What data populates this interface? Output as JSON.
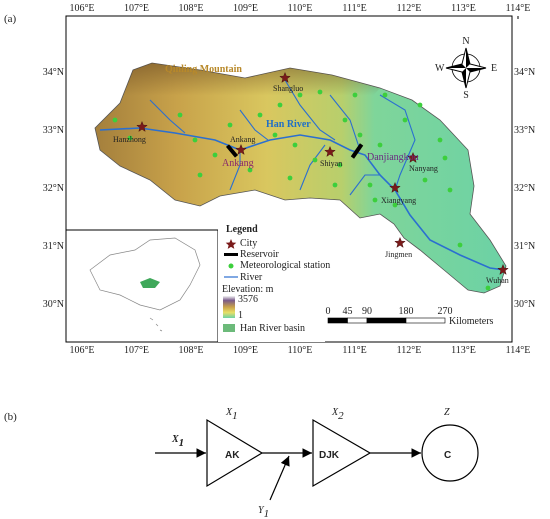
{
  "panel_a": {
    "label": "(a)",
    "lon_labels": [
      "106°E",
      "107°E",
      "108°E",
      "109°E",
      "110°E",
      "111°E",
      "112°E",
      "113°E",
      "114°E"
    ],
    "lat_labels": [
      "34°N",
      "33°N",
      "32°N",
      "31°N",
      "30°N"
    ],
    "features": {
      "mountain": "Qinling Mountain",
      "river": "Han River"
    },
    "cities": [
      "Shangluo",
      "Hanzhong",
      "Ankang",
      "Shiyan",
      "Nanyang",
      "Xiangyang",
      "Jingmen",
      "Wuhan"
    ],
    "reservoirs": [
      "Ankang",
      "Danjiangkou"
    ],
    "compass": {
      "north": "N",
      "east": "E",
      "south": "S",
      "west": "W"
    },
    "legend": {
      "title": "Legend",
      "city": "City",
      "reservoir": "Reservoir",
      "station": "Meteorological station",
      "river": "River",
      "elevation": "Elevation: m",
      "elev_max": "3576",
      "elev_min": "1",
      "basin": "Han River basin"
    },
    "scale_bar": {
      "ticks": [
        0,
        45,
        90,
        180,
        270
      ],
      "unit": "Kilometers"
    }
  },
  "panel_b": {
    "label": "(b)",
    "input": {
      "symbol": "X",
      "subscript": "1"
    },
    "nodes": [
      {
        "symbol": "X",
        "subscript": "1",
        "label": "AK"
      },
      {
        "symbol": "X",
        "subscript": "2",
        "label": "DJK"
      },
      {
        "symbol": "Z",
        "label": "C"
      }
    ],
    "lateral": {
      "symbol": "Y",
      "subscript": "1"
    }
  }
}
